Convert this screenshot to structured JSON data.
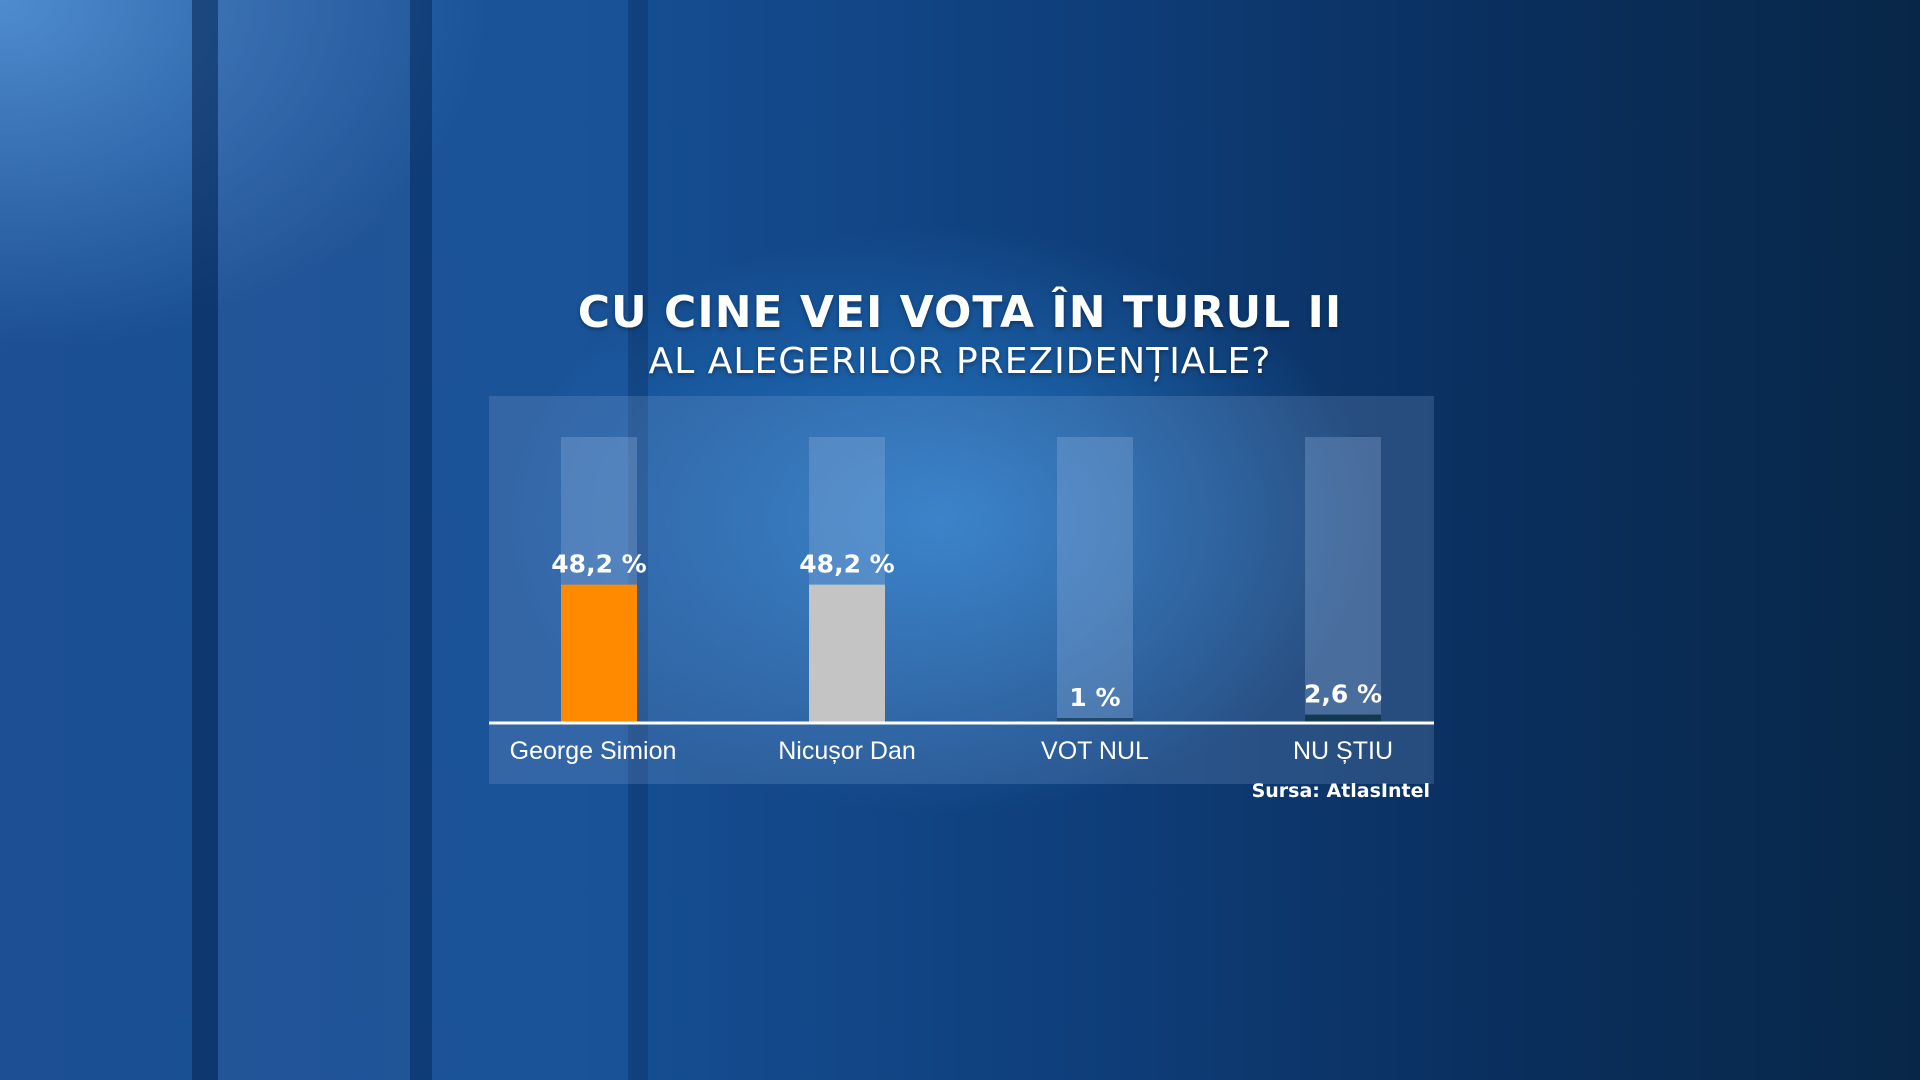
{
  "chart_data": {
    "type": "bar",
    "title": "CU CINE VEI VOTA ÎN TURUL II",
    "subtitle": "AL ALEGERILOR PREZIDENȚIALE?",
    "categories": [
      "George Simion",
      "Nicușor Dan",
      "VOT NUL",
      "NU ȘTIU"
    ],
    "values": [
      48.2,
      48.2,
      1,
      2.6
    ],
    "value_labels": [
      "48,2 %",
      "48,2 %",
      "1 %",
      "2,6 %"
    ],
    "bar_colors": [
      "#ff8a00",
      "#c4c4c4",
      "#1f4a6e",
      "#14384f"
    ],
    "ylim": [
      0,
      100
    ],
    "grid": false,
    "legend": "none",
    "source": "Sursa: AtlasIntel"
  }
}
